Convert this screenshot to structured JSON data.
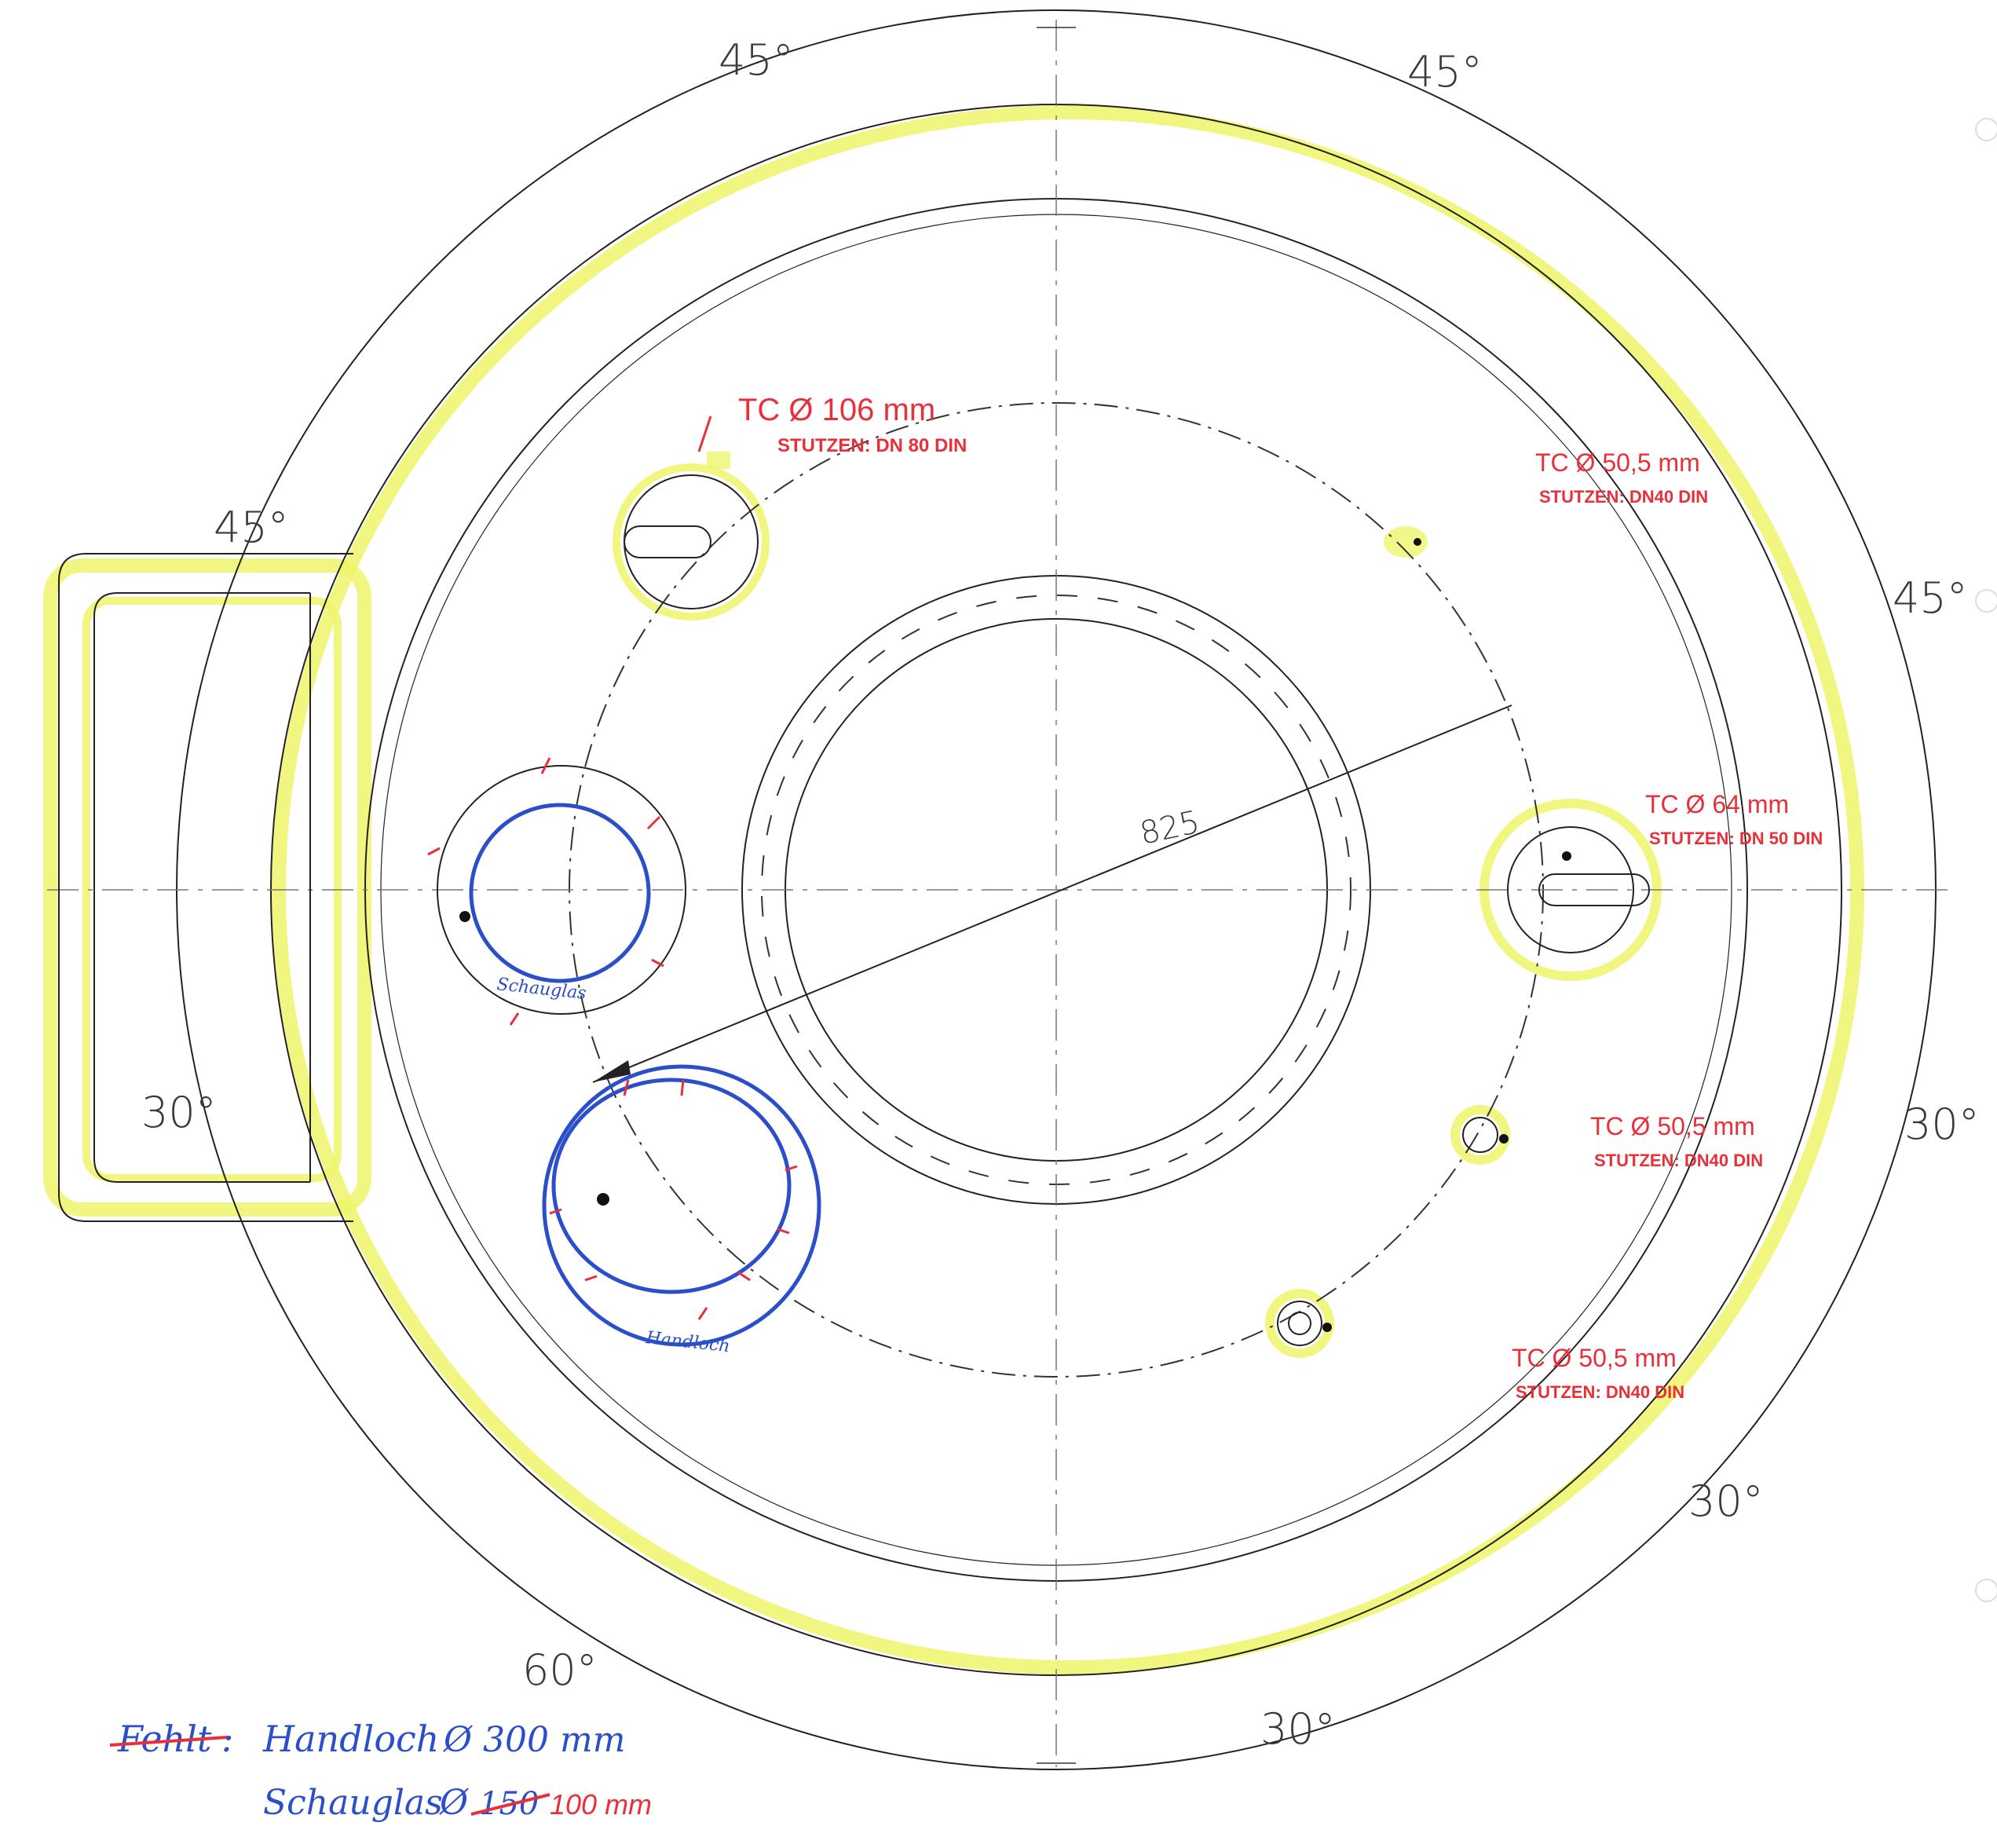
{
  "angles": {
    "top_left": "45°",
    "top_right": "45°",
    "left_upper": "45°",
    "right_upper": "45°",
    "left_lower": "30°",
    "right_lower": "30°",
    "bottom_right_outer": "30°",
    "bottom_left": "60°",
    "bottom_right": "30°"
  },
  "dimension": "825",
  "nozzles": [
    {
      "title": "TC Ø 106 mm",
      "detail": "STUTZEN: DN 80 DIN"
    },
    {
      "title": "TC Ø 50,5 mm",
      "detail": "STUTZEN: DN40 DIN"
    },
    {
      "title": "TC Ø 64 mm",
      "detail": "STUTZEN: DN 50 DIN"
    },
    {
      "title": "TC Ø 50,5 mm",
      "detail": "STUTZEN: DN40 DIN"
    },
    {
      "title": "TC Ø 50,5 mm",
      "detail": "STUTZEN: DN40 DIN"
    }
  ],
  "markers": {
    "schauglas": "Schauglas",
    "handloch": "Handloch"
  },
  "footnote": {
    "struck_word": "Fehlt",
    "colon": ":",
    "handloch_label": "Handloch",
    "handloch_size": "Ø 300 mm",
    "schauglas_label": "Schauglas",
    "schauglas_diameter": "Ø",
    "schauglas_old": "150",
    "schauglas_new": "100 mm"
  },
  "colors": {
    "pencil": "#3a3a3a",
    "red_ink": "#e8303a",
    "blue_ink": "#2a4fc8",
    "highlighter": "#eef56a"
  }
}
